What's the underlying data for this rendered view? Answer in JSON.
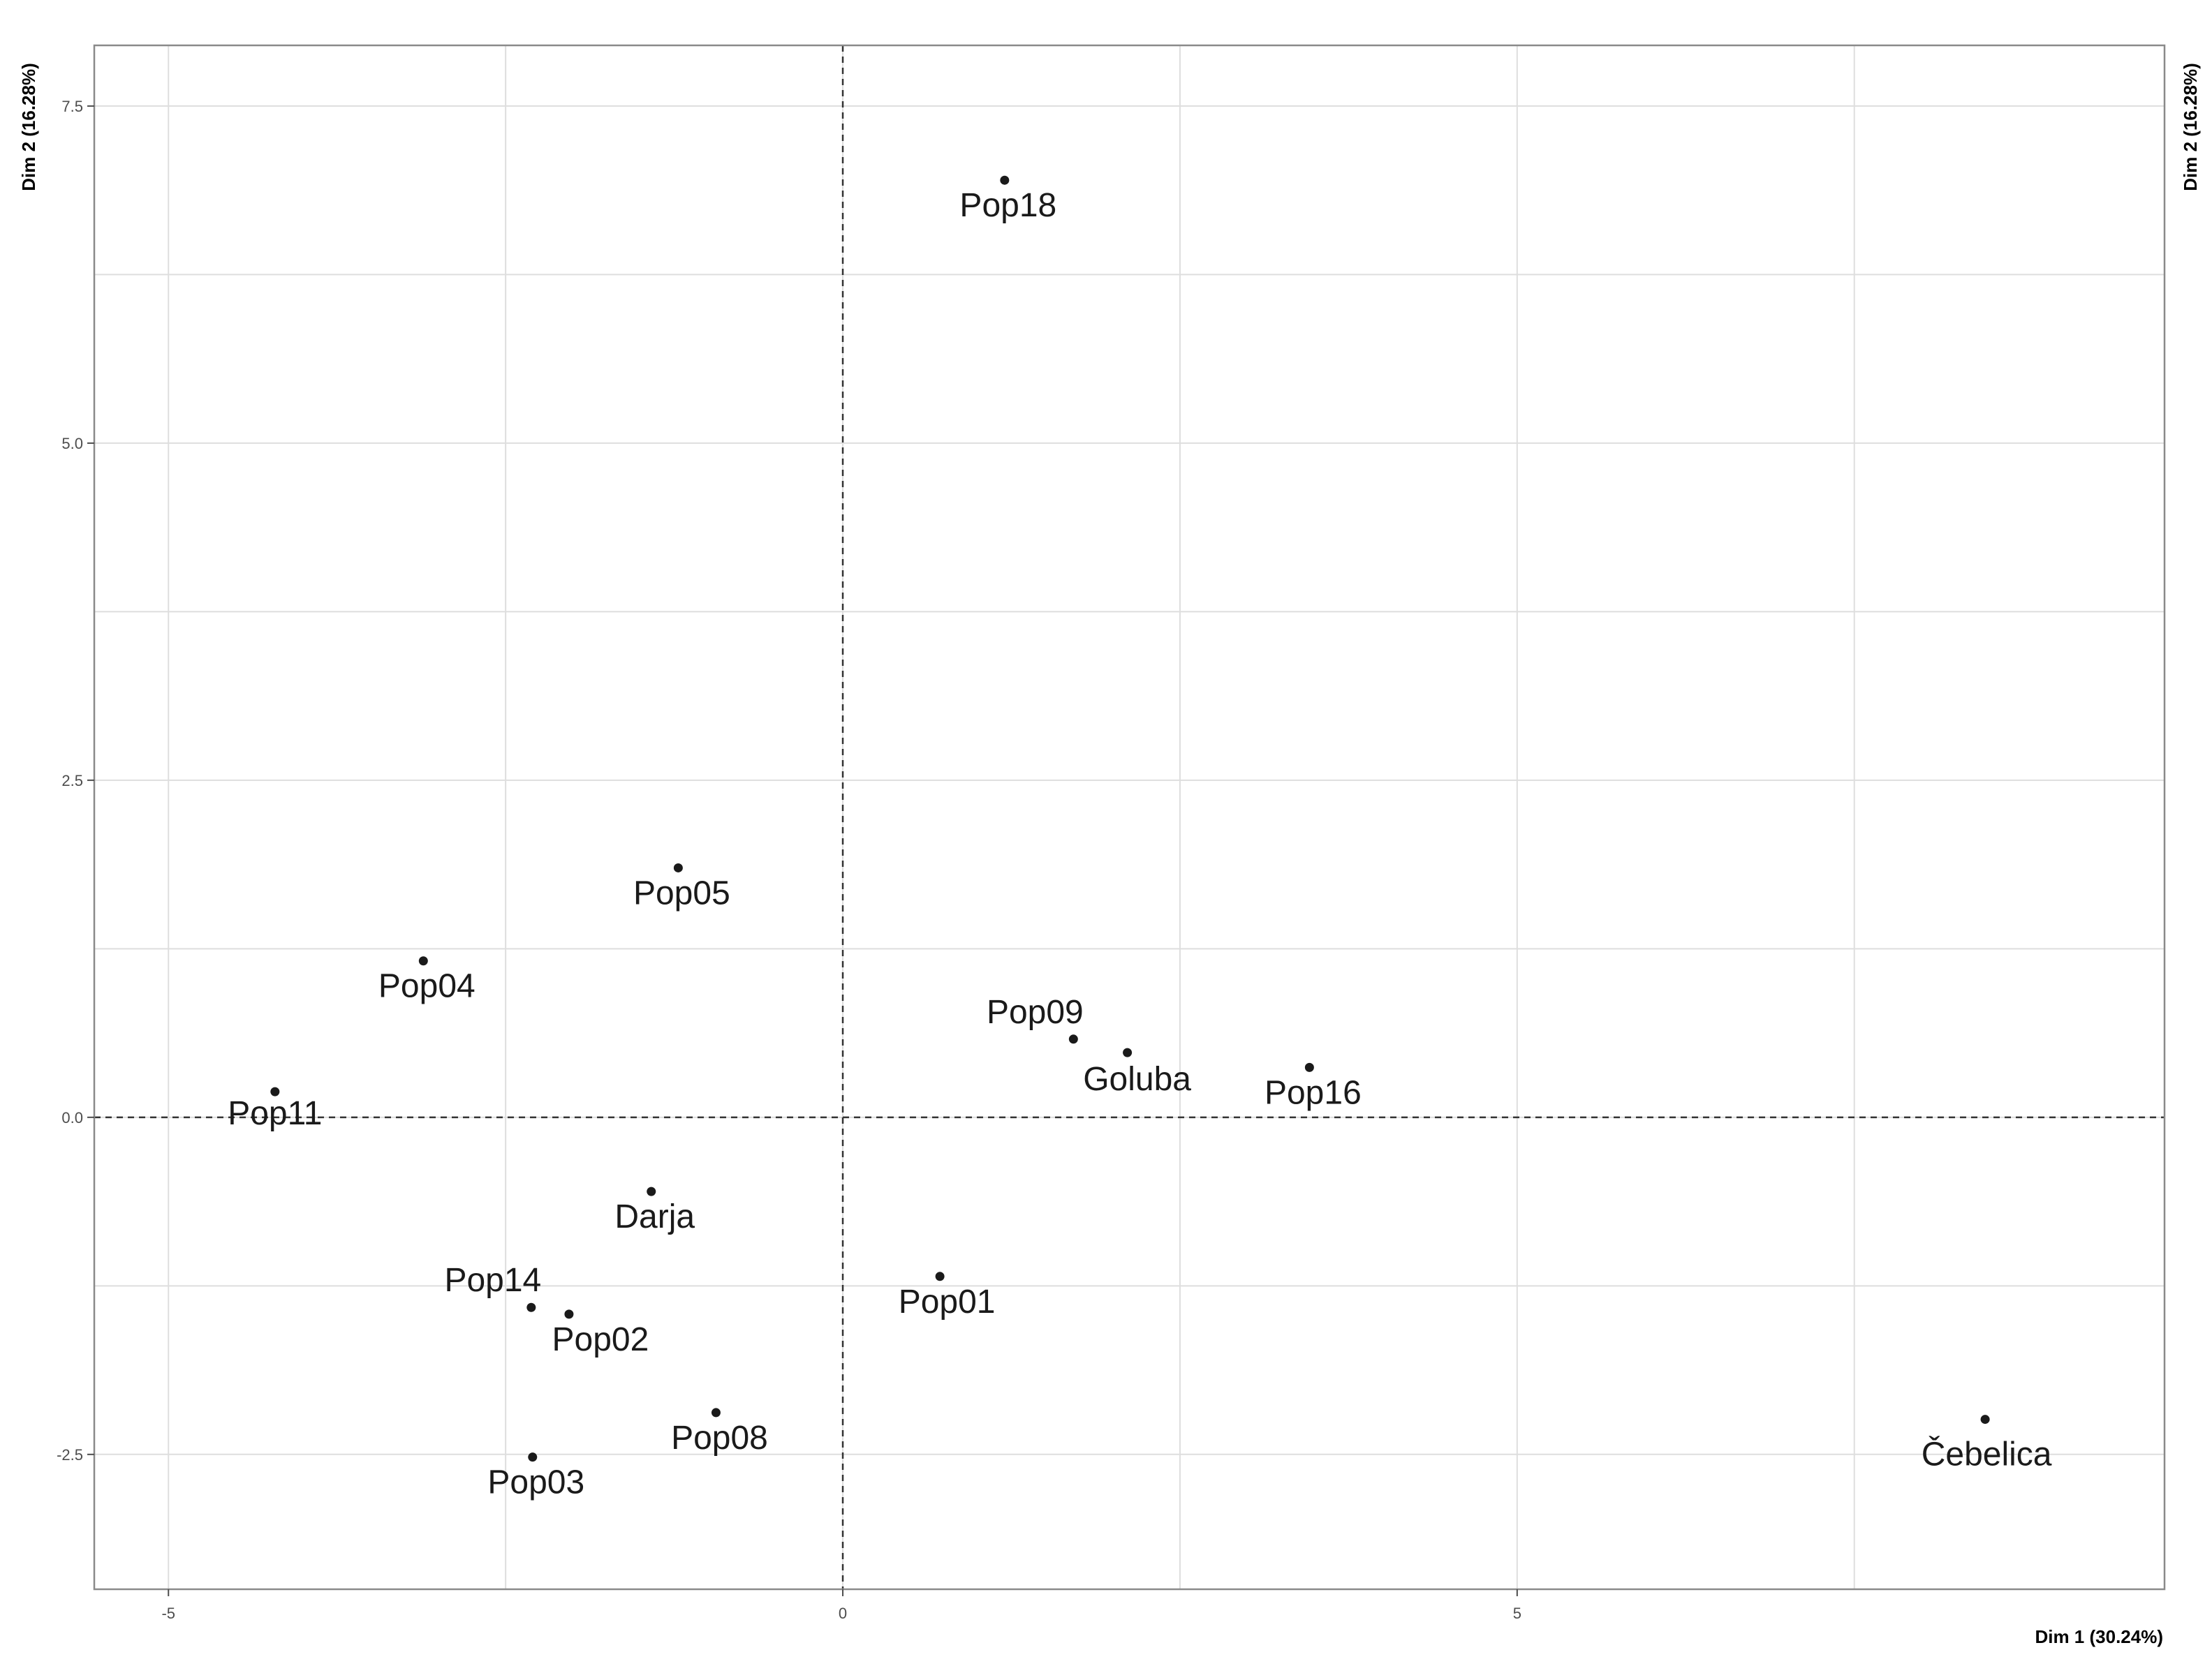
{
  "chart_data": {
    "type": "scatter",
    "title": "",
    "xlabel": "Dim 1 (30.24%)",
    "ylabel": "Dim 2 (16.28%)",
    "ylabel_secondary": "Dim 2 (16.28%)",
    "xlim": [
      -5.55,
      9.8
    ],
    "ylim": [
      -3.5,
      7.95
    ],
    "x_ticks": [
      {
        "value": -5,
        "label": "-5"
      },
      {
        "value": 0,
        "label": "0"
      },
      {
        "value": 5,
        "label": "5"
      }
    ],
    "y_ticks": [
      {
        "value": -2.5,
        "label": "-2.5"
      },
      {
        "value": 0,
        "label": "0.0"
      },
      {
        "value": 2.5,
        "label": "2.5"
      },
      {
        "value": 5,
        "label": "5.0"
      },
      {
        "value": 7.5,
        "label": "7.5"
      }
    ],
    "grid": true,
    "reference_lines": {
      "x": 0,
      "y": 0,
      "style": "dashed"
    },
    "points": [
      {
        "label": "Pop18",
        "x": 1.2,
        "y": 6.95
      },
      {
        "label": "Pop05",
        "x": -1.22,
        "y": 1.85
      },
      {
        "label": "Pop04",
        "x": -3.11,
        "y": 1.16
      },
      {
        "label": "Pop09",
        "x": 1.71,
        "y": 0.58
      },
      {
        "label": "Goluba",
        "x": 2.11,
        "y": 0.48
      },
      {
        "label": "Pop16",
        "x": 3.46,
        "y": 0.37
      },
      {
        "label": "Pop11",
        "x": -4.21,
        "y": 0.19
      },
      {
        "label": "Darja",
        "x": -1.42,
        "y": -0.55
      },
      {
        "label": "Pop01",
        "x": 0.72,
        "y": -1.18
      },
      {
        "label": "Pop14",
        "x": -2.31,
        "y": -1.41
      },
      {
        "label": "Pop02",
        "x": -2.03,
        "y": -1.46
      },
      {
        "label": "Pop08",
        "x": -0.94,
        "y": -2.19
      },
      {
        "label": "Pop03",
        "x": -2.3,
        "y": -2.52
      },
      {
        "label": "Čebelica",
        "x": 8.47,
        "y": -2.24
      }
    ],
    "colors": {
      "point": "#1a1a1a",
      "grid": "#dedede",
      "frame": "#8a8a8a",
      "reference": "#333333"
    }
  }
}
